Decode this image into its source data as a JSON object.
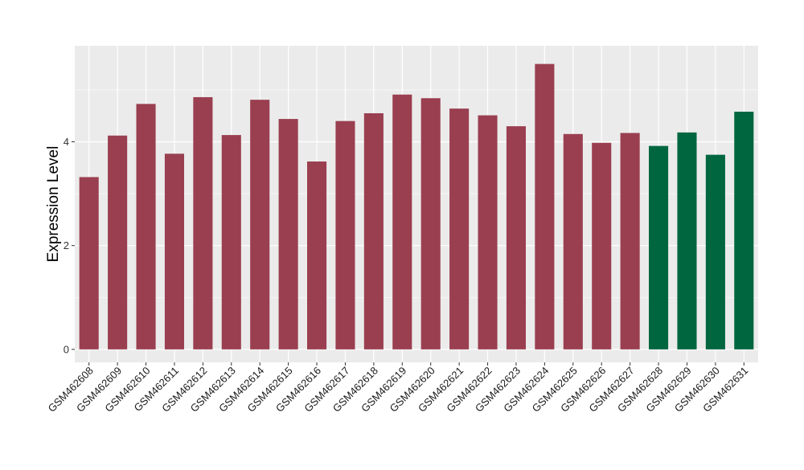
{
  "chart_data": {
    "type": "bar",
    "title": "",
    "xlabel": "",
    "ylabel": "Expression Level",
    "ylim": [
      -0.25,
      5.85
    ],
    "yticks": [
      0,
      2,
      4
    ],
    "grid": true,
    "legend": "none",
    "colors": {
      "group_a": "#9a3f50",
      "group_b": "#00663f",
      "panel_bg": "#ebebeb",
      "grid": "#ffffff"
    },
    "categories": [
      "GSM462608",
      "GSM462609",
      "GSM462610",
      "GSM462611",
      "GSM462612",
      "GSM462613",
      "GSM462614",
      "GSM462615",
      "GSM462616",
      "GSM462617",
      "GSM462618",
      "GSM462619",
      "GSM462620",
      "GSM462621",
      "GSM462622",
      "GSM462623",
      "GSM462624",
      "GSM462625",
      "GSM462626",
      "GSM462627",
      "GSM462628",
      "GSM462629",
      "GSM462630",
      "GSM462631"
    ],
    "values": [
      3.32,
      4.12,
      4.73,
      3.77,
      4.86,
      4.13,
      4.81,
      4.44,
      3.62,
      4.4,
      4.55,
      4.91,
      4.84,
      4.64,
      4.51,
      4.3,
      5.5,
      4.15,
      3.98,
      4.17,
      3.92,
      4.18,
      3.75,
      4.58
    ],
    "groups": [
      "a",
      "a",
      "a",
      "a",
      "a",
      "a",
      "a",
      "a",
      "a",
      "a",
      "a",
      "a",
      "a",
      "a",
      "a",
      "a",
      "a",
      "a",
      "a",
      "a",
      "b",
      "b",
      "b",
      "b"
    ]
  }
}
